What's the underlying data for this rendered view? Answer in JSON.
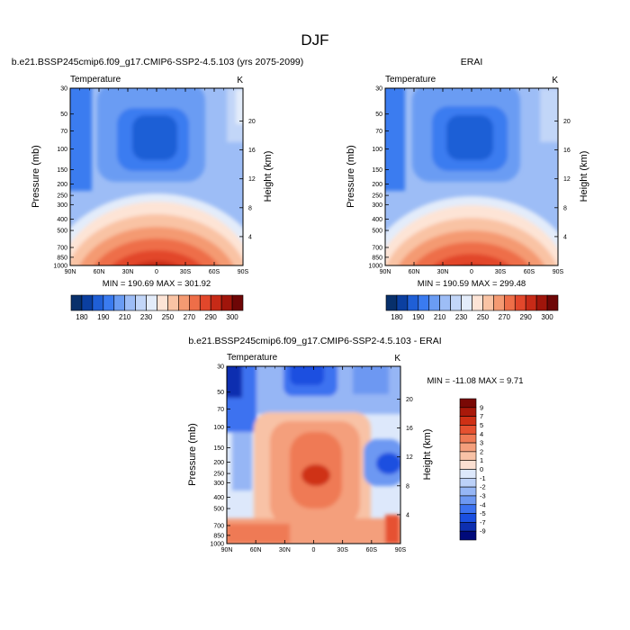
{
  "figure": {
    "title": "DJF"
  },
  "colors": {
    "temperature_scale": [
      "#08306b",
      "#0b3fa0",
      "#1f5fd6",
      "#3a7bf0",
      "#6a9cf3",
      "#9dbdf6",
      "#c2d6f8",
      "#e3ecfa",
      "#fde4d6",
      "#f9c3a4",
      "#f49a72",
      "#ee6e48",
      "#e2472b",
      "#c72a17",
      "#a0150b",
      "#6e0606"
    ],
    "difference_scale": [
      "#000a7a",
      "#0d2fb0",
      "#1a4fe0",
      "#3c72f0",
      "#6d98f2",
      "#96b6f5",
      "#bcd1f8",
      "#dde8fb",
      "#fbe0d2",
      "#f8c2a6",
      "#f49f7c",
      "#ef7a55",
      "#e65130",
      "#cf3015",
      "#a9190a",
      "#7a0905"
    ]
  },
  "chart_data": [
    {
      "id": "model",
      "type": "heatmap",
      "title": "b.e21.BSSP245cmip6.f09_g17.CMIP6-SSP2-4.5.103 (yrs 2075-2099)",
      "left_label": "Temperature",
      "right_label": "K",
      "xlabel": "",
      "ylabel": "Pressure (mb)",
      "ylabel_right": "Height (km)",
      "x_ticks": [
        "90N",
        "60N",
        "30N",
        "0",
        "30S",
        "60S",
        "90S"
      ],
      "y_ticks": [
        "30",
        "50",
        "70",
        "100",
        "150",
        "200",
        "250",
        "300",
        "400",
        "500",
        "700",
        "850",
        "1000"
      ],
      "height_ticks": [
        "20",
        "16",
        "12",
        "8",
        "4"
      ],
      "stats": "MIN = 190.69   MAX = 301.92",
      "min": 190.69,
      "max": 301.92,
      "colorbar_labels": [
        "180",
        "190",
        "210",
        "230",
        "250",
        "270",
        "290",
        "300"
      ],
      "levels_count": 16
    },
    {
      "id": "obs",
      "type": "heatmap",
      "title": "ERAI",
      "left_label": "Temperature",
      "right_label": "K",
      "xlabel": "",
      "ylabel": "Pressure (mb)",
      "ylabel_right": "Height (km)",
      "x_ticks": [
        "90N",
        "60N",
        "30N",
        "0",
        "30S",
        "60S",
        "90S"
      ],
      "y_ticks": [
        "30",
        "50",
        "70",
        "100",
        "150",
        "200",
        "250",
        "300",
        "400",
        "500",
        "700",
        "850",
        "1000"
      ],
      "height_ticks": [
        "20",
        "16",
        "12",
        "8",
        "4"
      ],
      "stats": "MIN = 190.59   MAX = 299.48",
      "min": 190.59,
      "max": 299.48,
      "colorbar_labels": [
        "180",
        "190",
        "210",
        "230",
        "250",
        "270",
        "290",
        "300"
      ],
      "levels_count": 16
    },
    {
      "id": "diff",
      "type": "heatmap",
      "title": "b.e21.BSSP245cmip6.f09_g17.CMIP6-SSP2-4.5.103 - ERAI",
      "left_label": "Temperature",
      "right_label": "K",
      "xlabel": "",
      "ylabel": "Pressure (mb)",
      "ylabel_right": "Height (km)",
      "x_ticks": [
        "90N",
        "60N",
        "30N",
        "0",
        "30S",
        "60S",
        "90S"
      ],
      "y_ticks": [
        "30",
        "50",
        "70",
        "100",
        "150",
        "200",
        "250",
        "300",
        "400",
        "500",
        "700",
        "850",
        "1000"
      ],
      "height_ticks": [
        "20",
        "16",
        "12",
        "8",
        "4"
      ],
      "stats": "MIN = -11.08   MAX =   9.71",
      "min": -11.08,
      "max": 9.71,
      "colorbar_labels": [
        "9",
        "7",
        "5",
        "4",
        "3",
        "2",
        "1",
        "0",
        "-1",
        "-2",
        "-3",
        "-4",
        "-5",
        "-7",
        "-9"
      ]
    }
  ]
}
